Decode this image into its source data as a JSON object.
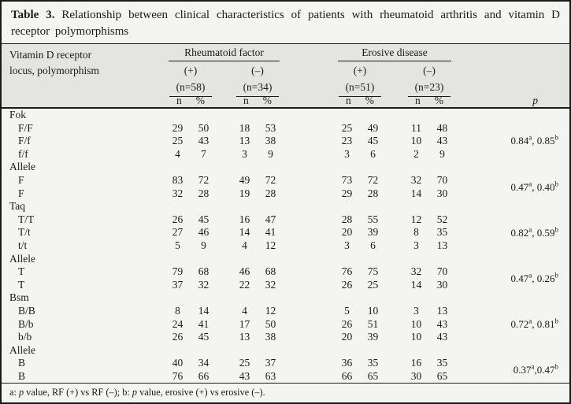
{
  "title": {
    "label": "Table 3.",
    "text": "Relationship between clinical characteristics of patients with rheumatoid arthritis and vitamin D receptor polymorphisms"
  },
  "row_header": {
    "line1": "Vitamin D receptor",
    "line2": "locus, polymorphism"
  },
  "groups": [
    {
      "label": "Rheumatoid factor",
      "cols": [
        {
          "sign": "(+)",
          "n": "(n=58)"
        },
        {
          "sign": "(–)",
          "n": "(n=34)"
        }
      ]
    },
    {
      "label": "Erosive disease",
      "cols": [
        {
          "sign": "(+)",
          "n": "(n=51)"
        },
        {
          "sign": "(–)",
          "n": "(n=23)"
        }
      ]
    }
  ],
  "sub_headers": {
    "n": "n",
    "pct": "%"
  },
  "p_header": "p",
  "sections": [
    {
      "name": "Fok",
      "rows": [
        {
          "label": "F/F",
          "values": [
            "29",
            "50",
            "18",
            "53",
            "25",
            "49",
            "11",
            "48"
          ]
        },
        {
          "label": "F/f",
          "values": [
            "25",
            "43",
            "13",
            "38",
            "23",
            "45",
            "10",
            "43"
          ]
        },
        {
          "label": "f/f",
          "values": [
            "4",
            "7",
            "3",
            "9",
            "3",
            "6",
            "2",
            "9"
          ]
        }
      ],
      "p": {
        "v1": "0.84",
        "s1": "a",
        "sep": ", ",
        "v2": "0.85",
        "s2": "b"
      }
    },
    {
      "name": "Allele",
      "rows": [
        {
          "label": "F",
          "values": [
            "83",
            "72",
            "49",
            "72",
            "73",
            "72",
            "32",
            "70"
          ]
        },
        {
          "label": "F",
          "values": [
            "32",
            "28",
            "19",
            "28",
            "29",
            "28",
            "14",
            "30"
          ]
        }
      ],
      "p": {
        "v1": "0.47",
        "s1": "a",
        "sep": ", ",
        "v2": "0.40",
        "s2": "b"
      }
    },
    {
      "name": "Taq",
      "rows": [
        {
          "label": "T/T",
          "values": [
            "26",
            "45",
            "16",
            "47",
            "28",
            "55",
            "12",
            "52"
          ]
        },
        {
          "label": "T/t",
          "values": [
            "27",
            "46",
            "14",
            "41",
            "20",
            "39",
            "8",
            "35"
          ]
        },
        {
          "label": "t/t",
          "values": [
            "5",
            "9",
            "4",
            "12",
            "3",
            "6",
            "3",
            "13"
          ]
        }
      ],
      "p": {
        "v1": "0.82",
        "s1": "a",
        "sep": ", ",
        "v2": "0.59",
        "s2": "b"
      }
    },
    {
      "name": "Allele",
      "rows": [
        {
          "label": "T",
          "values": [
            "79",
            "68",
            "46",
            "68",
            "76",
            "75",
            "32",
            "70"
          ]
        },
        {
          "label": "T",
          "values": [
            "37",
            "32",
            "22",
            "32",
            "26",
            "25",
            "14",
            "30"
          ]
        }
      ],
      "p": {
        "v1": "0.47",
        "s1": "a",
        "sep": ", ",
        "v2": "0.26",
        "s2": "b"
      }
    },
    {
      "name": "Bsm",
      "rows": [
        {
          "label": "B/B",
          "values": [
            "8",
            "14",
            "4",
            "12",
            "5",
            "10",
            "3",
            "13"
          ]
        },
        {
          "label": "B/b",
          "values": [
            "24",
            "41",
            "17",
            "50",
            "26",
            "51",
            "10",
            "43"
          ]
        },
        {
          "label": "b/b",
          "values": [
            "26",
            "45",
            "13",
            "38",
            "20",
            "39",
            "10",
            "43"
          ]
        }
      ],
      "p": {
        "v1": "0.72",
        "s1": "a",
        "sep": ", ",
        "v2": "0.81",
        "s2": "b"
      }
    },
    {
      "name": "Allele",
      "rows": [
        {
          "label": "B",
          "values": [
            "40",
            "34",
            "25",
            "37",
            "36",
            "35",
            "16",
            "35"
          ]
        },
        {
          "label": "B",
          "values": [
            "76",
            "66",
            "43",
            "63",
            "66",
            "65",
            "30",
            "65"
          ]
        }
      ],
      "p": {
        "v1": "0.37",
        "s1": "a",
        "sep": ",",
        "v2": "0.47",
        "s2": "b"
      }
    }
  ],
  "footnote": {
    "a_prefix": "a: ",
    "p1": "p",
    "a_text": " value, RF (+) vs RF (–);  b: ",
    "p2": "p",
    "b_text": " value, erosive (+) vs erosive (–)."
  },
  "colors": {
    "page_bg": "#f4f4f2",
    "header_bg": "#e4e4e1",
    "text": "#1b1b1b",
    "rule": "#1a1a1a"
  }
}
